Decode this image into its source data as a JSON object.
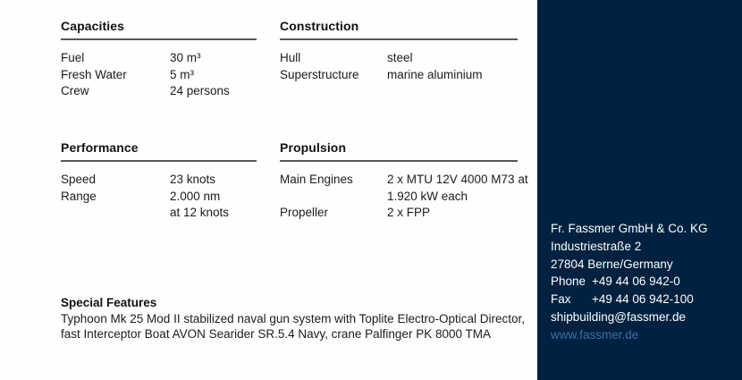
{
  "page": {
    "background": "#fefefe",
    "text_color": "#1c1c1e",
    "rule_color": "#56575b"
  },
  "sections": [
    {
      "title": "Capacities",
      "rows": [
        {
          "label": "Fuel",
          "value": "30 m³"
        },
        {
          "label": "Fresh Water",
          "value": "5 m³"
        },
        {
          "label": "Crew",
          "value": "24 persons"
        }
      ]
    },
    {
      "title": "Construction",
      "rows": [
        {
          "label": "Hull",
          "value": "steel"
        },
        {
          "label": "Superstructure",
          "value": "marine aluminium"
        }
      ]
    },
    {
      "title": "Performance",
      "rows": [
        {
          "label": "Speed",
          "value": "23 knots"
        },
        {
          "label": "Range",
          "value": "2.000 nm"
        },
        {
          "label": "",
          "value": "at 12 knots"
        }
      ]
    },
    {
      "title": "Propulsion",
      "rows": [
        {
          "label": "Main Engines",
          "value": "2 x MTU 12V 4000 M73 at"
        },
        {
          "label": "",
          "value": "1.920 kW each"
        },
        {
          "label": "Propeller",
          "value": "2 x FPP"
        }
      ]
    }
  ],
  "special_features": {
    "title": "Special Features",
    "lines": [
      "Typhoon Mk 25 Mod II stabilized naval gun system with Toplite Electro-Optical Director,",
      "fast Interceptor Boat AVON Searider SR.5.4 Navy, crane Palfinger PK 8000 TMA"
    ]
  },
  "sidebar": {
    "background": "#00213f",
    "text_color": "#ffffff",
    "link_color": "#3b6fa6",
    "company": "Fr. Fassmer GmbH & Co. KG",
    "street": "Industriestraße 2",
    "city": "27804 Berne/Germany",
    "phone_label": "Phone",
    "phone_value": "+49 44 06 942-0",
    "fax_label": "Fax",
    "fax_value": "+49 44 06 942-100",
    "email": "shipbuilding@fassmer.de",
    "website": "www.fassmer.de"
  }
}
